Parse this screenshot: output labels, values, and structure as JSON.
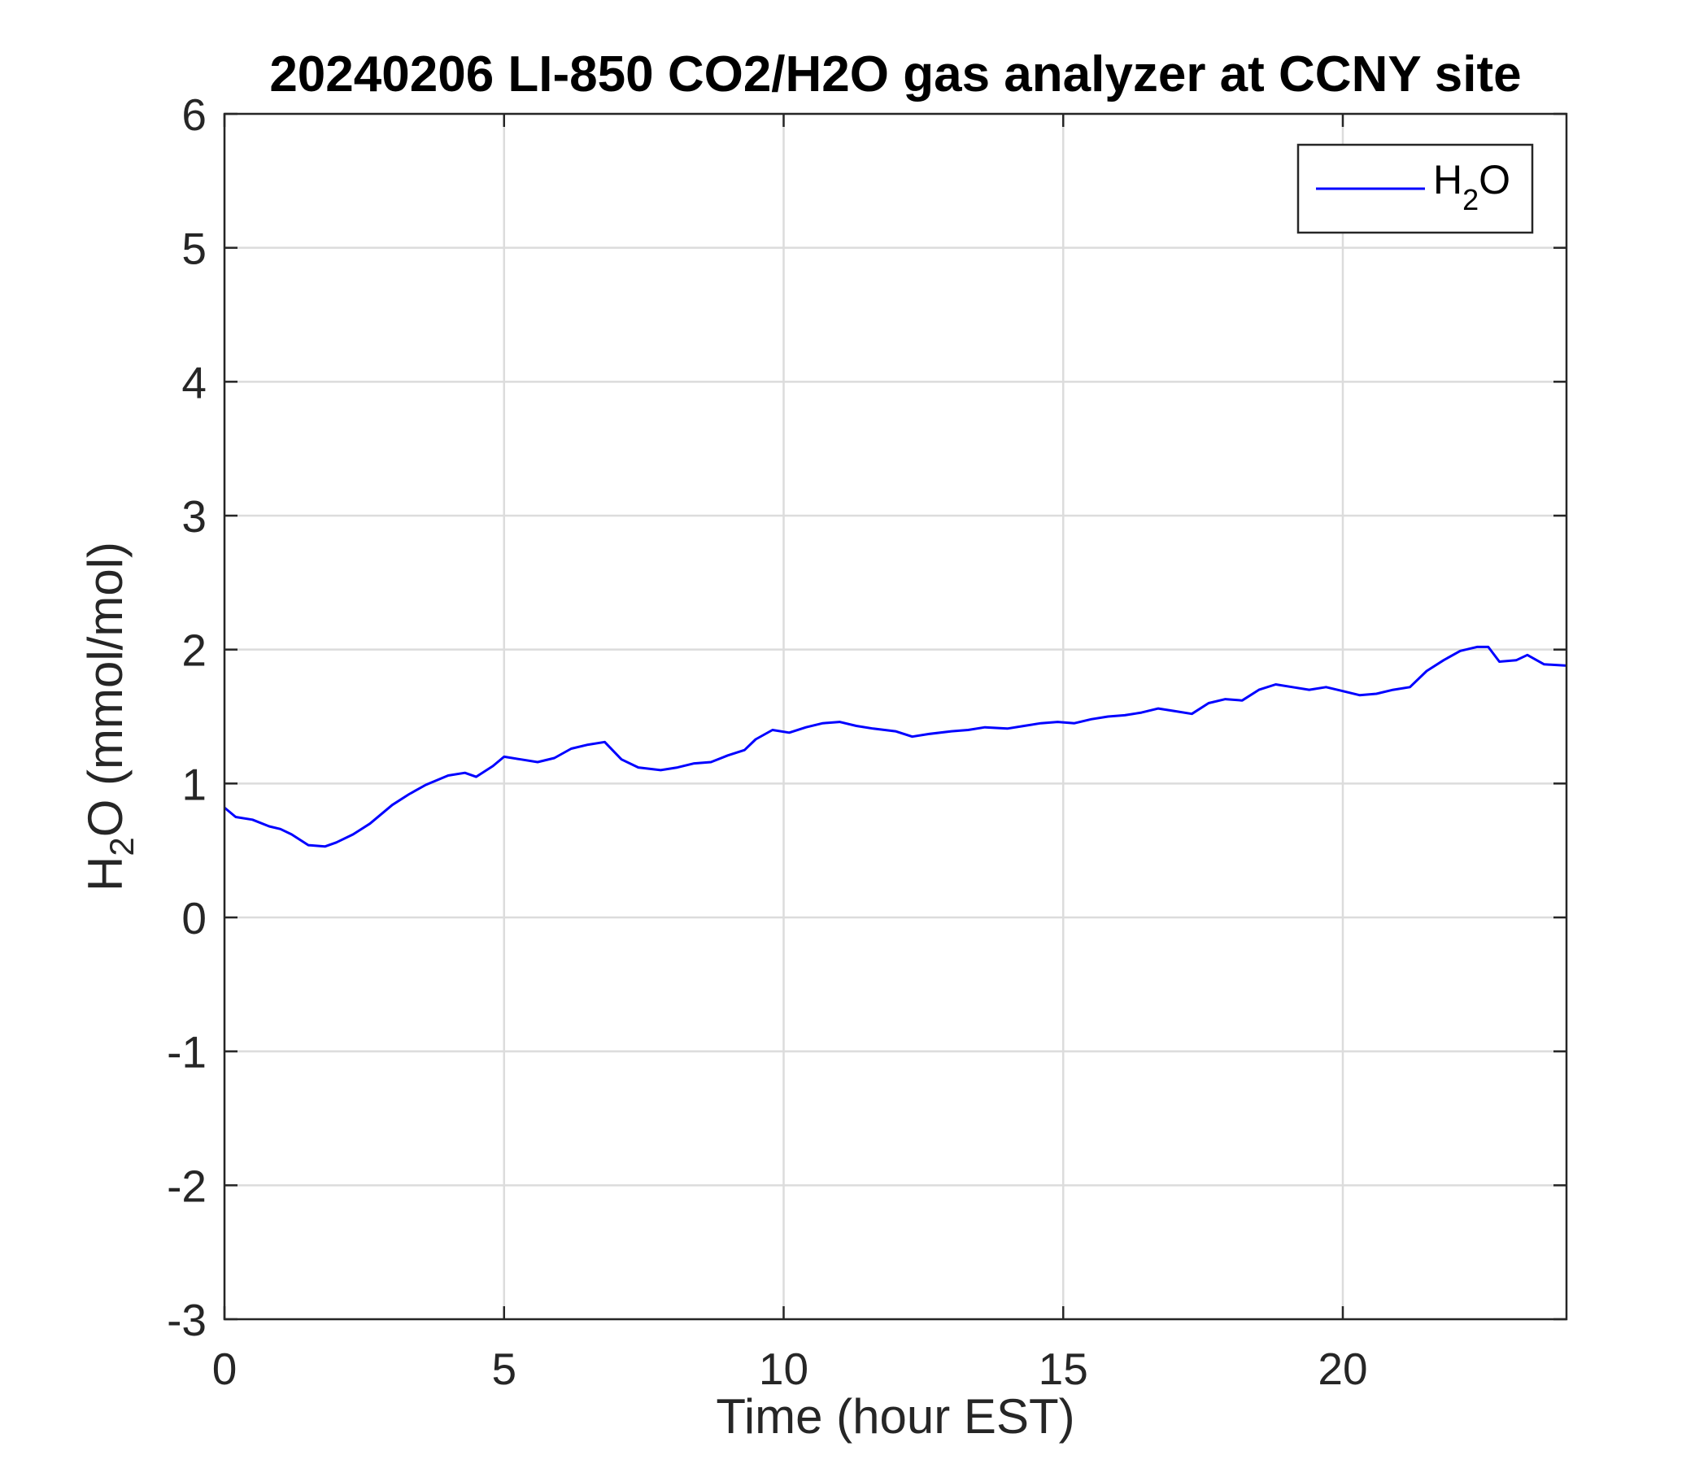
{
  "chart_data": {
    "type": "line",
    "title": "20240206 LI-850 CO2/H2O gas analyzer at CCNY site",
    "xlabel": "Time (hour EST)",
    "ylabel": {
      "main": "H",
      "sub": "2",
      "rest": "O (mmol/mol)"
    },
    "xlim": [
      0,
      24
    ],
    "ylim": [
      -3,
      6
    ],
    "xticks": [
      0,
      5,
      10,
      15,
      20
    ],
    "xtick_labels": [
      "0",
      "5",
      "10",
      "15",
      "20"
    ],
    "yticks": [
      -3,
      -2,
      -1,
      0,
      1,
      2,
      3,
      4,
      5,
      6
    ],
    "ytick_labels": [
      "-3",
      "-2",
      "-1",
      "0",
      "1",
      "2",
      "3",
      "4",
      "5",
      "6"
    ],
    "grid": true,
    "legend": {
      "position": "top-right",
      "entries": [
        {
          "main": "H",
          "sub": "2",
          "rest": "O"
        }
      ]
    },
    "series": [
      {
        "color": "#0000ff",
        "x": [
          0,
          0.2,
          0.5,
          0.8,
          1.0,
          1.2,
          1.5,
          1.8,
          2.0,
          2.3,
          2.6,
          3.0,
          3.3,
          3.6,
          4.0,
          4.3,
          4.5,
          4.8,
          5.0,
          5.3,
          5.6,
          5.9,
          6.2,
          6.5,
          6.8,
          7.1,
          7.4,
          7.8,
          8.1,
          8.4,
          8.7,
          9.0,
          9.3,
          9.5,
          9.8,
          10.1,
          10.4,
          10.7,
          11.0,
          11.3,
          11.6,
          12.0,
          12.3,
          12.6,
          13.0,
          13.3,
          13.6,
          14.0,
          14.3,
          14.6,
          14.9,
          15.2,
          15.5,
          15.8,
          16.1,
          16.4,
          16.7,
          17.0,
          17.3,
          17.6,
          17.9,
          18.2,
          18.5,
          18.8,
          19.1,
          19.4,
          19.7,
          20.0,
          20.3,
          20.6,
          20.9,
          21.2,
          21.5,
          21.8,
          22.1,
          22.4,
          22.6,
          22.8,
          23.1,
          23.3,
          23.6,
          24.0
        ],
        "y": [
          0.82,
          0.75,
          0.73,
          0.68,
          0.66,
          0.62,
          0.54,
          0.53,
          0.56,
          0.62,
          0.7,
          0.84,
          0.92,
          0.99,
          1.06,
          1.08,
          1.05,
          1.13,
          1.2,
          1.18,
          1.16,
          1.19,
          1.26,
          1.29,
          1.31,
          1.18,
          1.12,
          1.1,
          1.12,
          1.15,
          1.16,
          1.21,
          1.25,
          1.33,
          1.4,
          1.38,
          1.42,
          1.45,
          1.46,
          1.43,
          1.41,
          1.39,
          1.35,
          1.37,
          1.39,
          1.4,
          1.42,
          1.41,
          1.43,
          1.45,
          1.46,
          1.45,
          1.48,
          1.5,
          1.51,
          1.53,
          1.56,
          1.54,
          1.52,
          1.6,
          1.63,
          1.62,
          1.7,
          1.74,
          1.72,
          1.7,
          1.72,
          1.69,
          1.66,
          1.67,
          1.7,
          1.72,
          1.84,
          1.92,
          1.99,
          2.02,
          2.02,
          1.91,
          1.92,
          1.96,
          1.89,
          1.88
        ]
      }
    ]
  }
}
